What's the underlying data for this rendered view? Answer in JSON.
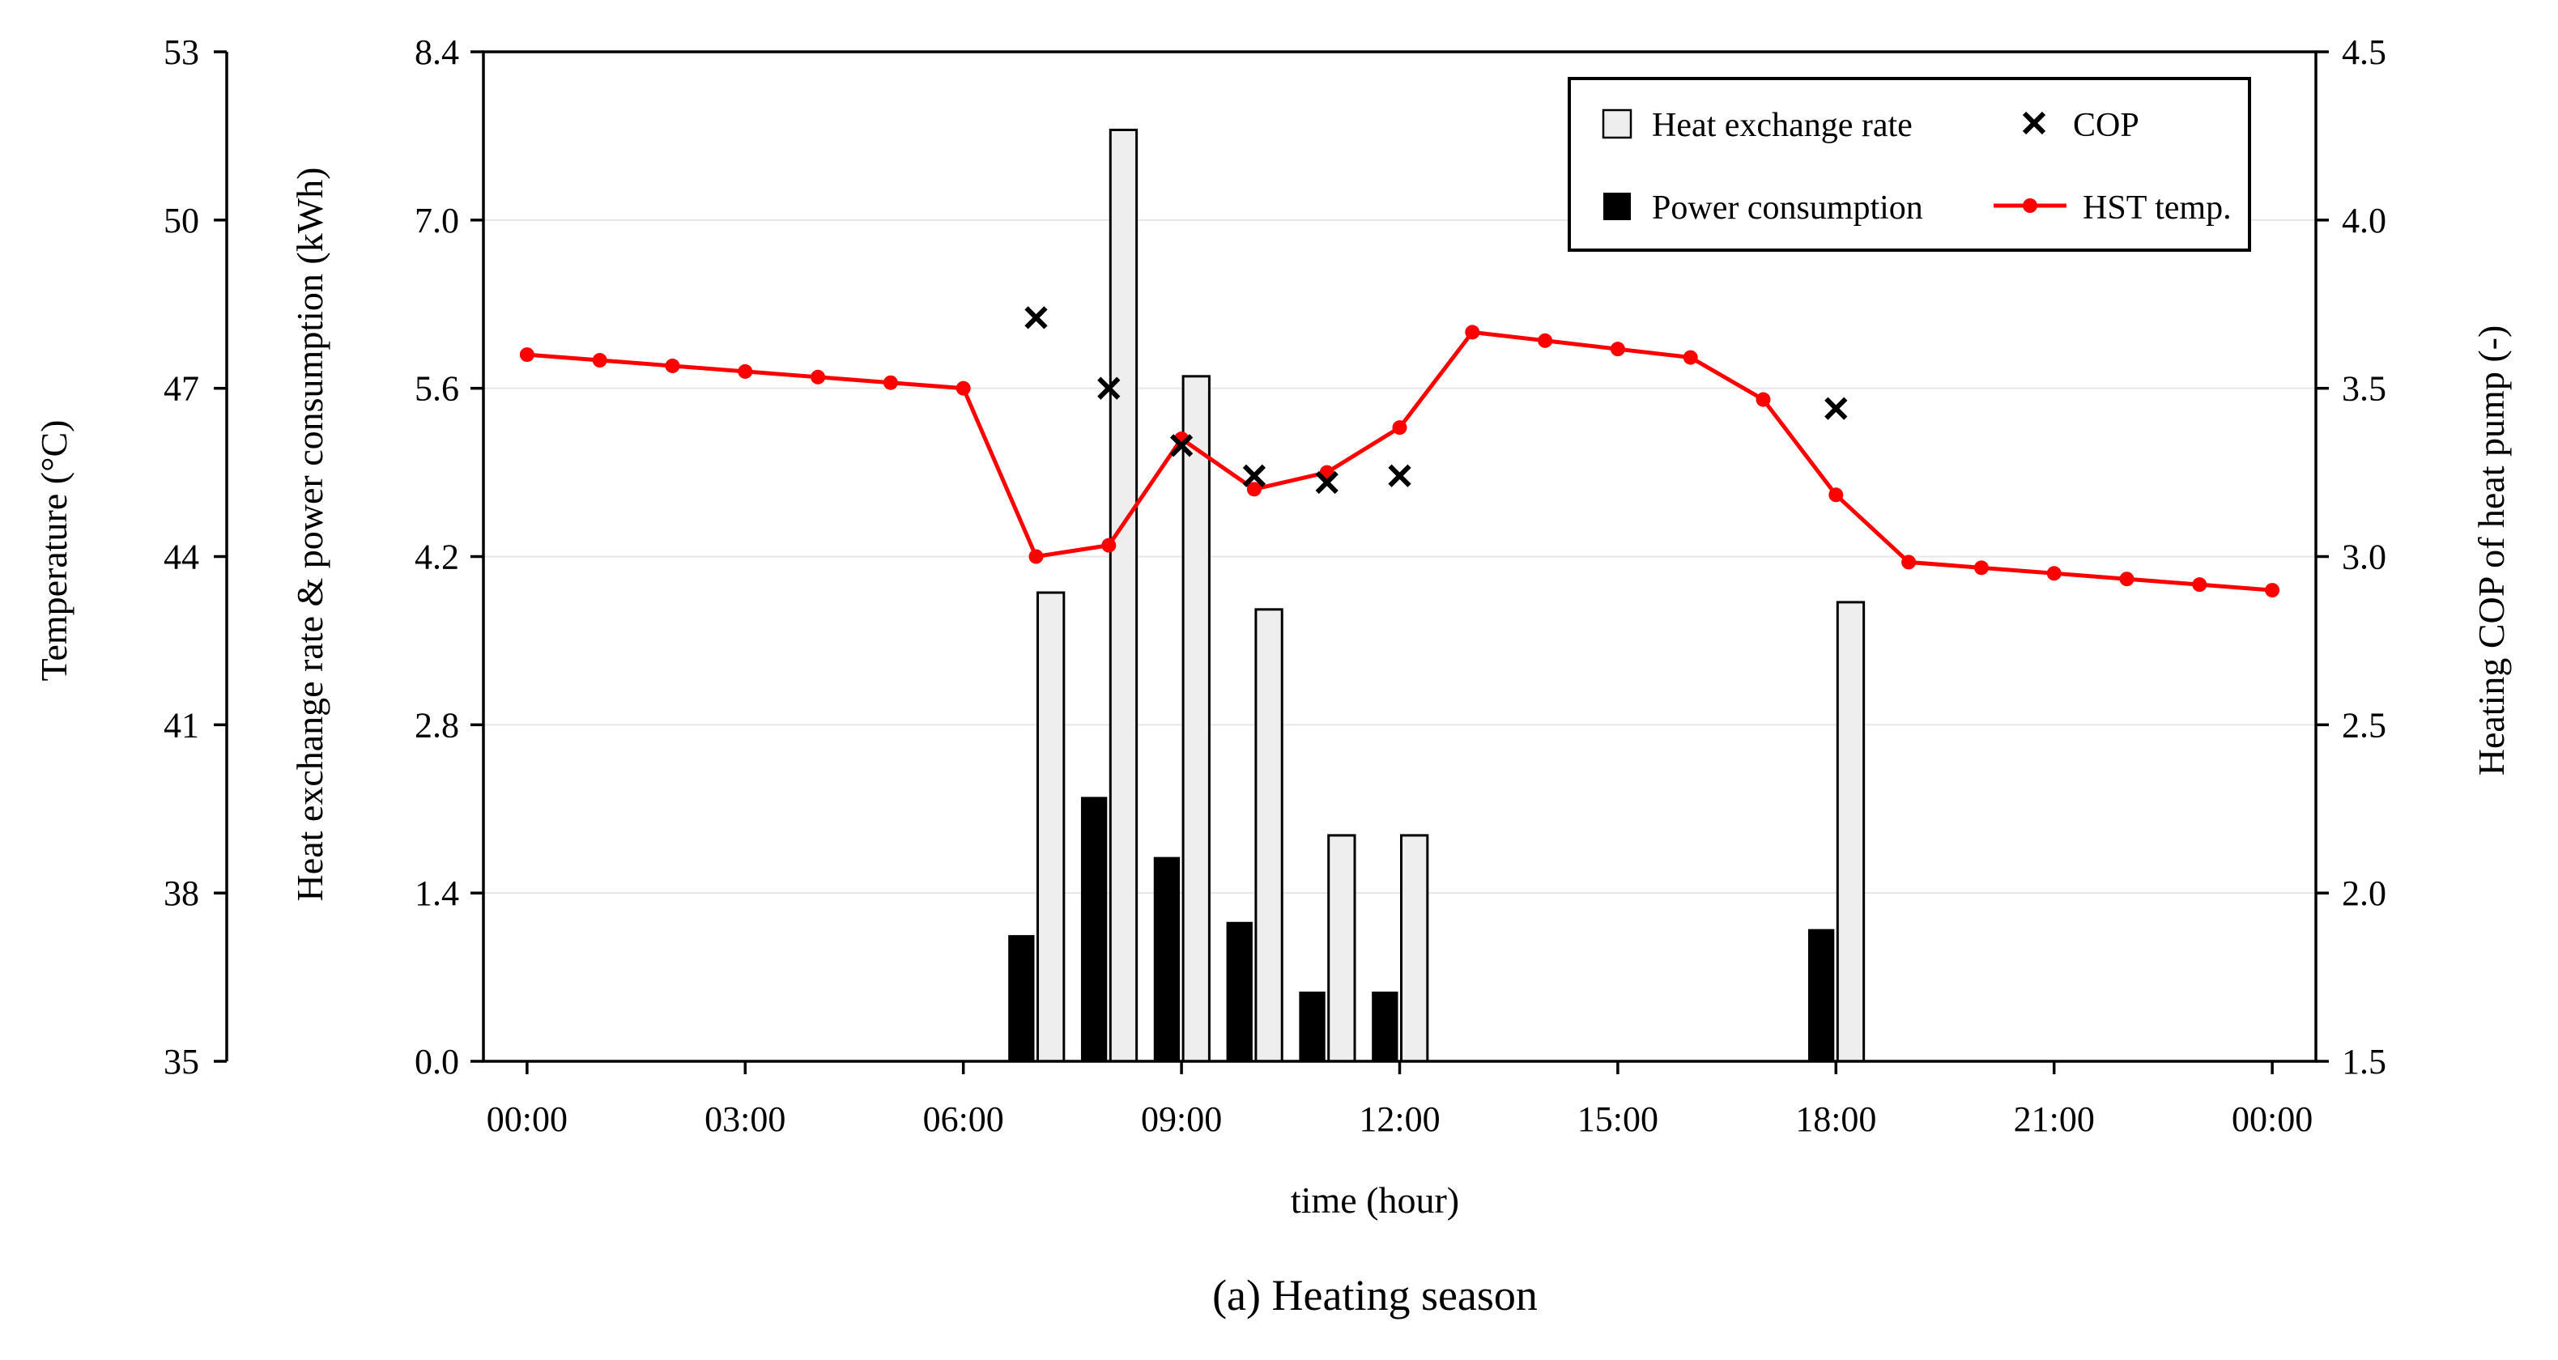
{
  "chart_data": {
    "type": "bar",
    "caption": "(a) Heating season",
    "xlabel": "time (hour)",
    "x_tick_labels": [
      "00:00",
      "03:00",
      "06:00",
      "09:00",
      "12:00",
      "15:00",
      "18:00",
      "21:00",
      "00:00"
    ],
    "x_tick_hours": [
      0,
      3,
      6,
      9,
      12,
      15,
      18,
      21,
      24
    ],
    "xlim": [
      -0.6,
      24.6
    ],
    "axes": {
      "temperature": {
        "label": "Temperature (°C)",
        "ylim": [
          35,
          53
        ],
        "ticks": [
          35,
          38,
          41,
          44,
          47,
          50,
          53
        ],
        "tick_labels": [
          "35",
          "38",
          "41",
          "44",
          "47",
          "50",
          "53"
        ]
      },
      "energy": {
        "label": "Heat exchange rate & power consumption (kWh)",
        "ylim": [
          0,
          8.4
        ],
        "ticks": [
          0,
          1.4,
          2.8,
          4.2,
          5.6,
          7.0,
          8.4
        ],
        "tick_labels": [
          "0.0",
          "1.4",
          "2.8",
          "4.2",
          "5.6",
          "7.0",
          "8.4"
        ]
      },
      "cop": {
        "label": "Heating COP of heat pump (-)",
        "ylim": [
          1.5,
          4.5
        ],
        "ticks": [
          1.5,
          2.0,
          2.5,
          3.0,
          3.5,
          4.0,
          4.5
        ],
        "tick_labels": [
          "1.5",
          "2.0",
          "2.5",
          "3.0",
          "3.5",
          "4.0",
          "4.5"
        ]
      }
    },
    "series": [
      {
        "name": "Heat exchange rate",
        "type": "bar",
        "axis": "energy",
        "color": "#eeeeee",
        "x": [
          7,
          8,
          9,
          10,
          11,
          12,
          18
        ],
        "values": [
          3.9,
          7.75,
          5.7,
          3.76,
          1.88,
          1.88,
          3.82
        ]
      },
      {
        "name": "Power consumption",
        "type": "bar",
        "axis": "energy",
        "color": "#000000",
        "x": [
          7,
          8,
          9,
          10,
          11,
          12,
          18
        ],
        "values": [
          1.05,
          2.2,
          1.7,
          1.16,
          0.58,
          0.58,
          1.1
        ]
      },
      {
        "name": "COP",
        "type": "scatter",
        "axis": "cop",
        "marker": "x",
        "color": "#000000",
        "x": [
          7,
          8,
          9,
          10,
          11,
          12,
          18
        ],
        "values": [
          3.71,
          3.5,
          3.33,
          3.24,
          3.22,
          3.24,
          3.44
        ]
      },
      {
        "name": "HST temp.",
        "type": "line",
        "axis": "temperature",
        "color": "#ff0000",
        "x": [
          0,
          1,
          2,
          3,
          4,
          5,
          6,
          7,
          8,
          9,
          10,
          11,
          12,
          13,
          14,
          15,
          16,
          17,
          18,
          19,
          20,
          21,
          22,
          23,
          24
        ],
        "values": [
          47.6,
          47.5,
          47.4,
          47.3,
          47.2,
          47.1,
          47.0,
          44.0,
          44.2,
          46.1,
          45.2,
          45.5,
          46.3,
          48.0,
          47.85,
          47.7,
          47.55,
          46.8,
          45.1,
          43.9,
          43.8,
          43.7,
          43.6,
          43.5,
          43.4
        ]
      }
    ],
    "legend": {
      "position": "top-right",
      "entries": [
        "Heat exchange rate",
        "COP",
        "Power consumption",
        "HST temp."
      ]
    },
    "grid": true
  }
}
